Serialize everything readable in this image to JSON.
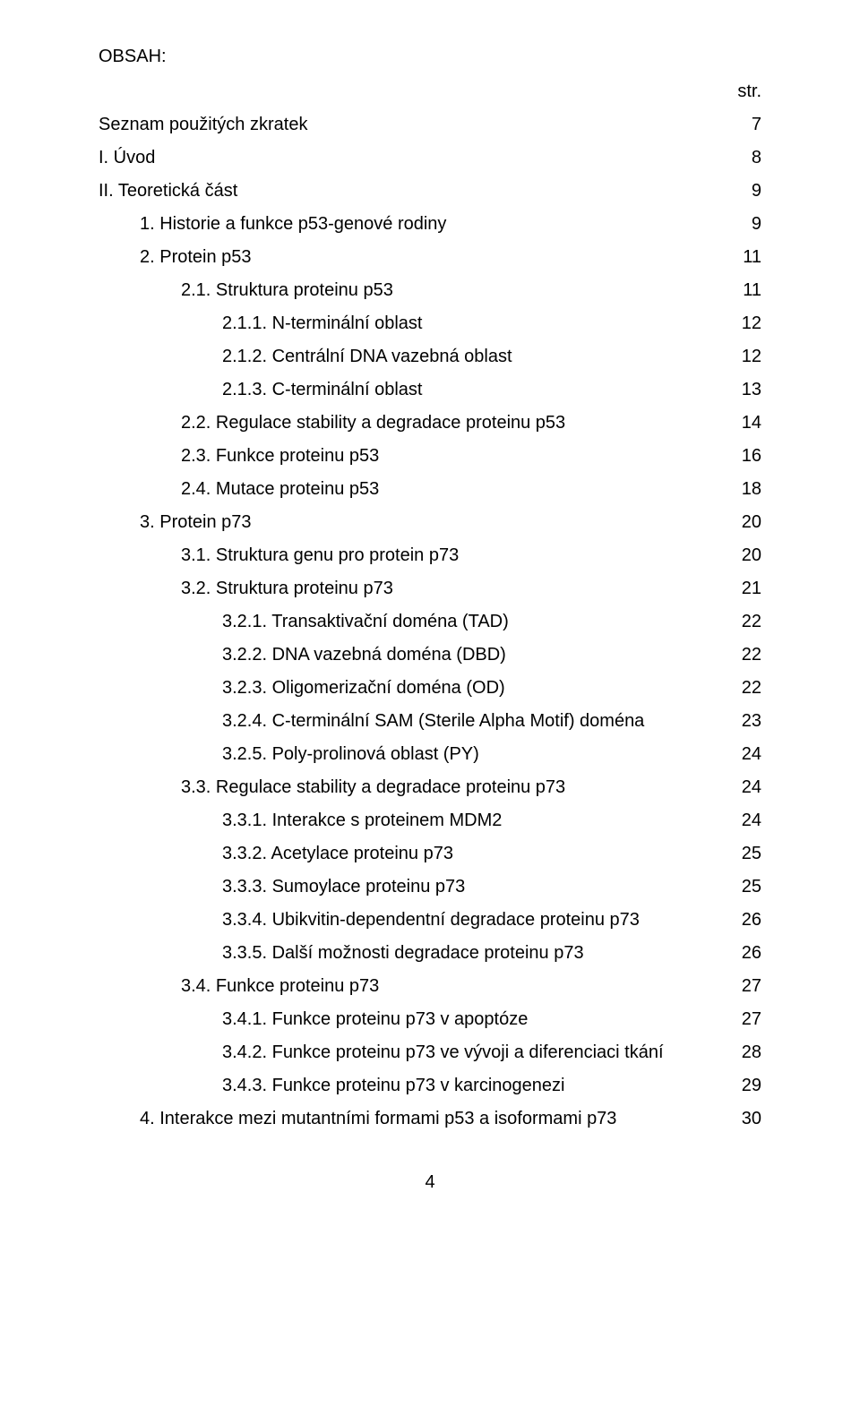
{
  "heading": "OBSAH:",
  "page_label": "str.",
  "entries": [
    {
      "indent": 0,
      "text": "Seznam použitých zkratek",
      "page": "7"
    },
    {
      "indent": 0,
      "text": "I. Úvod",
      "page": "8"
    },
    {
      "indent": 0,
      "text": "II. Teoretická část",
      "page": "9"
    },
    {
      "indent": 1,
      "text": "1.  Historie a funkce p53-genové rodiny",
      "page": "9"
    },
    {
      "indent": 1,
      "text": "2.  Protein p53",
      "page": "11"
    },
    {
      "indent": 2,
      "text": "2.1. Struktura proteinu p53",
      "page": "11"
    },
    {
      "indent": 3,
      "text": "2.1.1.  N-terminální oblast",
      "page": "12"
    },
    {
      "indent": 3,
      "text": "2.1.2.  Centrální DNA vazebná oblast",
      "page": "12"
    },
    {
      "indent": 3,
      "text": "2.1.3.  C-terminální oblast",
      "page": "13"
    },
    {
      "indent": 2,
      "text": "2.2. Regulace stability a degradace proteinu p53",
      "page": "14"
    },
    {
      "indent": 2,
      "text": "2.3. Funkce proteinu p53",
      "page": "16"
    },
    {
      "indent": 2,
      "text": "2.4. Mutace proteinu p53",
      "page": "18"
    },
    {
      "indent": 1,
      "text": "3.  Protein p73",
      "page": "20"
    },
    {
      "indent": 2,
      "text": "3.1. Struktura genu pro protein p73",
      "page": "20"
    },
    {
      "indent": 2,
      "text": "3.2. Struktura proteinu p73",
      "page": "21"
    },
    {
      "indent": 3,
      "text": "3.2.1.  Transaktivační doména (TAD)",
      "page": "22"
    },
    {
      "indent": 3,
      "text": "3.2.2.  DNA vazebná doména (DBD)",
      "page": "22"
    },
    {
      "indent": 3,
      "text": "3.2.3.  Oligomerizační doména (OD)",
      "page": "22"
    },
    {
      "indent": 3,
      "text": "3.2.4.  C-terminální SAM (Sterile Alpha Motif) doména",
      "page": "23"
    },
    {
      "indent": 3,
      "text": "3.2.5.  Poly-prolinová oblast (PY)",
      "page": "24"
    },
    {
      "indent": 2,
      "text": "3.3. Regulace stability a degradace proteinu p73",
      "page": "24"
    },
    {
      "indent": 3,
      "text": "3.3.1.  Interakce s proteinem MDM2",
      "page": "24"
    },
    {
      "indent": 3,
      "text": "3.3.2.  Acetylace proteinu p73",
      "page": "25"
    },
    {
      "indent": 3,
      "text": "3.3.3.  Sumoylace proteinu p73",
      "page": "25"
    },
    {
      "indent": 3,
      "text": "3.3.4.  Ubikvitin-dependentní degradace proteinu p73",
      "page": "26"
    },
    {
      "indent": 3,
      "text": "3.3.5.  Další možnosti degradace proteinu p73",
      "page": "26"
    },
    {
      "indent": 2,
      "text": "3.4. Funkce proteinu p73",
      "page": "27"
    },
    {
      "indent": 3,
      "text": "3.4.1.  Funkce proteinu p73 v apoptóze",
      "page": "27"
    },
    {
      "indent": 3,
      "text": "3.4.2.  Funkce proteinu p73 ve vývoji a diferenciaci tkání",
      "page": "28"
    },
    {
      "indent": 3,
      "text": "3.4.3.  Funkce proteinu p73 v karcinogenezi",
      "page": "29"
    },
    {
      "indent": 1,
      "text": "4.  Interakce mezi mutantními formami p53 a isoformami p73",
      "page": "30"
    }
  ],
  "footer_page": "4"
}
